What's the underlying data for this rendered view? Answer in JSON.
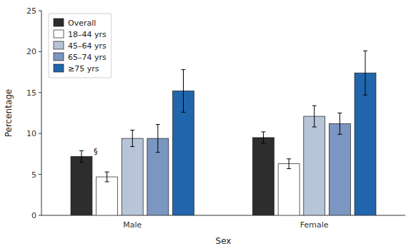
{
  "chart_data": {
    "type": "bar",
    "categories": [
      "Male",
      "Female"
    ],
    "series": [
      {
        "name": "Overall",
        "color": "#2d2d2d",
        "values": [
          7.2,
          9.5
        ],
        "errors": [
          0.7,
          0.7
        ]
      },
      {
        "name": "18–44 yrs",
        "color": "#ffffff",
        "values": [
          4.7,
          6.3
        ],
        "errors": [
          0.6,
          0.6
        ]
      },
      {
        "name": "45–64 yrs",
        "color": "#b8c4d8",
        "values": [
          9.4,
          12.1
        ],
        "errors": [
          1.0,
          1.3
        ]
      },
      {
        "name": "65–74 yrs",
        "color": "#7b96c0",
        "values": [
          9.4,
          11.2
        ],
        "errors": [
          1.7,
          1.3
        ]
      },
      {
        "name": "≥75 yrs",
        "color": "#2166ac",
        "values": [
          15.2,
          17.4
        ],
        "errors": [
          2.6,
          2.7
        ]
      }
    ],
    "xlabel": "Sex",
    "ylabel": "Percentage",
    "ylim": [
      0,
      25
    ],
    "yticks": [
      0,
      5,
      10,
      15,
      20,
      25
    ],
    "grid": false,
    "legend": "upper left",
    "annotations": [
      {
        "text": "§",
        "category": "Male",
        "series": "Overall"
      }
    ]
  }
}
